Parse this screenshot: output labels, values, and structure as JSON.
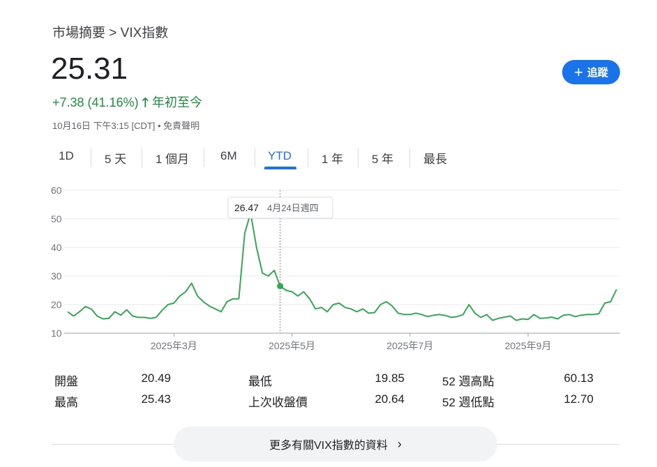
{
  "breadcrumb": "市場摘要 > VIX指數",
  "price": "25.31",
  "change": "+7.38 (41.16%)",
  "period": "年初至今",
  "timestamp": "10月16日 下午3:15 [CDT] • ",
  "disclaimer": "免責聲明",
  "follow": "追蹤",
  "tabs": [
    "1D",
    "5 天",
    "1 個月",
    "6M",
    "YTD",
    "1 年",
    "5 年",
    "最長"
  ],
  "active_tab": "YTD",
  "stats": [
    [
      [
        "開盤",
        "20.49"
      ],
      [
        "最低",
        "19.85"
      ],
      [
        "52 週高點",
        "60.13"
      ]
    ],
    [
      [
        "最高",
        "25.43"
      ],
      [
        "上次收盤價",
        "20.64"
      ],
      [
        "52 週低點",
        "12.70"
      ]
    ]
  ],
  "more": "更多有關VIX指數的資料",
  "chart_data": {
    "type": "line",
    "color": "#34a853",
    "ylim": [
      10,
      60
    ],
    "yticks": [
      10,
      20,
      30,
      40,
      50,
      60
    ],
    "grid": true,
    "tooltip": {
      "value": 26.47,
      "label": "4月24日週四"
    },
    "categories": [
      null,
      null,
      null,
      null,
      null,
      null,
      null,
      null,
      null,
      null,
      null,
      null,
      null,
      null,
      null,
      null,
      null,
      null,
      "2025年3月",
      null,
      null,
      null,
      null,
      null,
      null,
      null,
      null,
      null,
      null,
      null,
      null,
      null,
      null,
      null,
      null,
      null,
      null,
      null,
      "2025年5月",
      null,
      null,
      null,
      null,
      null,
      null,
      null,
      null,
      null,
      null,
      null,
      null,
      null,
      null,
      null,
      null,
      null,
      null,
      null,
      "2025年7月",
      null,
      null,
      null,
      null,
      null,
      null,
      null,
      null,
      null,
      null,
      null,
      null,
      null,
      null,
      null,
      null,
      null,
      null,
      null,
      "2025年9月",
      null,
      null,
      null,
      null,
      null,
      null,
      null,
      null,
      null,
      null,
      null,
      null,
      null,
      null,
      null
    ],
    "values": [
      17.5,
      16,
      17.5,
      19.3,
      18.5,
      16,
      15,
      15.2,
      17.5,
      16.3,
      18.2,
      16,
      15.5,
      15.5,
      15.2,
      15.5,
      18,
      20,
      20.5,
      23,
      24.5,
      27.5,
      23,
      21,
      19.5,
      18.5,
      17.5,
      21,
      22,
      22,
      45,
      52,
      40,
      31,
      30,
      32,
      26.47,
      25,
      24.5,
      23,
      24.5,
      22,
      18.5,
      19,
      17.5,
      20,
      20.5,
      19,
      18.5,
      17.5,
      18.5,
      17,
      17.2,
      20,
      21,
      19.5,
      17,
      16.5,
      16.5,
      17,
      16.5,
      15.8,
      16.3,
      16.5,
      16.2,
      15.5,
      15.8,
      16.5,
      20,
      17,
      15.5,
      16.5,
      14.5,
      15.2,
      15.6,
      16,
      14.5,
      15,
      14.8,
      16.5,
      15.2,
      15.3,
      15.6,
      15,
      16.3,
      16.5,
      15.8,
      16.3,
      16.5,
      16.5,
      16.8,
      20.5,
      21,
      25.31
    ]
  }
}
